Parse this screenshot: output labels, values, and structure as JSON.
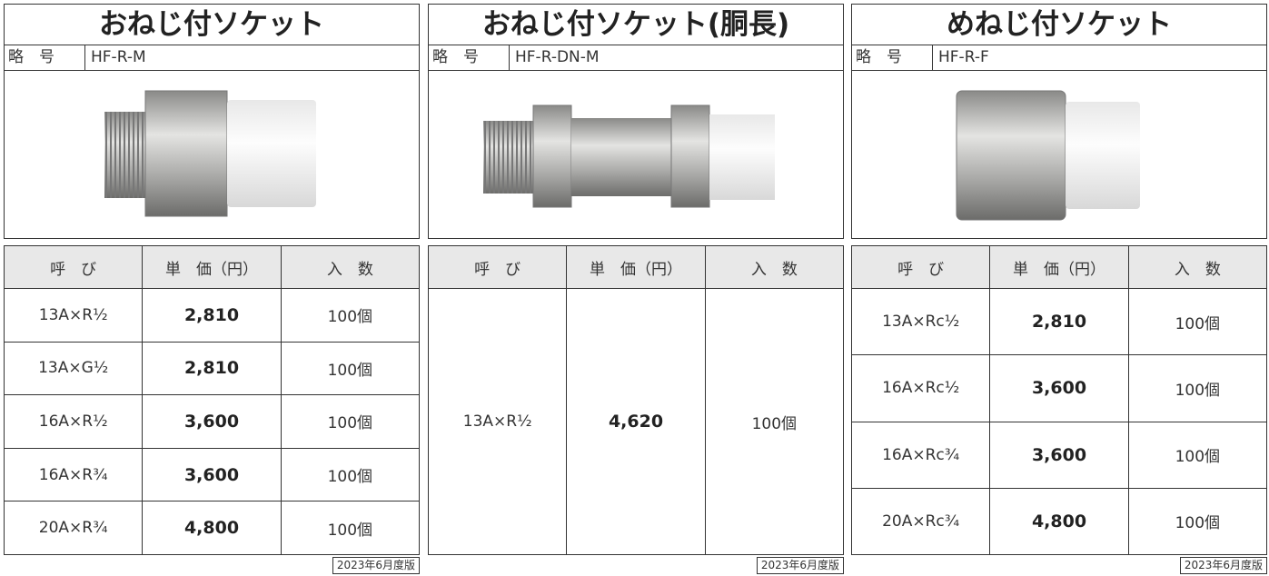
{
  "panels": [
    {
      "title": "おねじ付ソケット",
      "code_label": "略　号",
      "code": "HF-R-M",
      "headers": [
        "呼　び",
        "単　価（円）",
        "入　数"
      ],
      "rows": [
        [
          "13A×R½",
          "2,810",
          "100個"
        ],
        [
          "13A×G½",
          "2,810",
          "100個"
        ],
        [
          "16A×R½",
          "3,600",
          "100個"
        ],
        [
          "16A×R¾",
          "3,600",
          "100個"
        ],
        [
          "20A×R¾",
          "4,800",
          "100個"
        ]
      ],
      "edition": "2023年6月度版"
    },
    {
      "title": "おねじ付ソケット(胴長)",
      "code_label": "略　号",
      "code": "HF-R-DN-M",
      "headers": [
        "呼　び",
        "単　価（円）",
        "入　数"
      ],
      "rows": [
        [
          "13A×R½",
          "4,620",
          "100個"
        ]
      ],
      "edition": "2023年6月度版"
    },
    {
      "title": "めねじ付ソケット",
      "code_label": "略　号",
      "code": "HF-R-F",
      "headers": [
        "呼　び",
        "単　価（円）",
        "入　数"
      ],
      "rows": [
        [
          "13A×Rc½",
          "2,810",
          "100個"
        ],
        [
          "16A×Rc½",
          "3,600",
          "100個"
        ],
        [
          "16A×Rc¾",
          "3,600",
          "100個"
        ],
        [
          "20A×Rc¾",
          "4,800",
          "100個"
        ]
      ],
      "edition": "2023年6月度版"
    }
  ]
}
